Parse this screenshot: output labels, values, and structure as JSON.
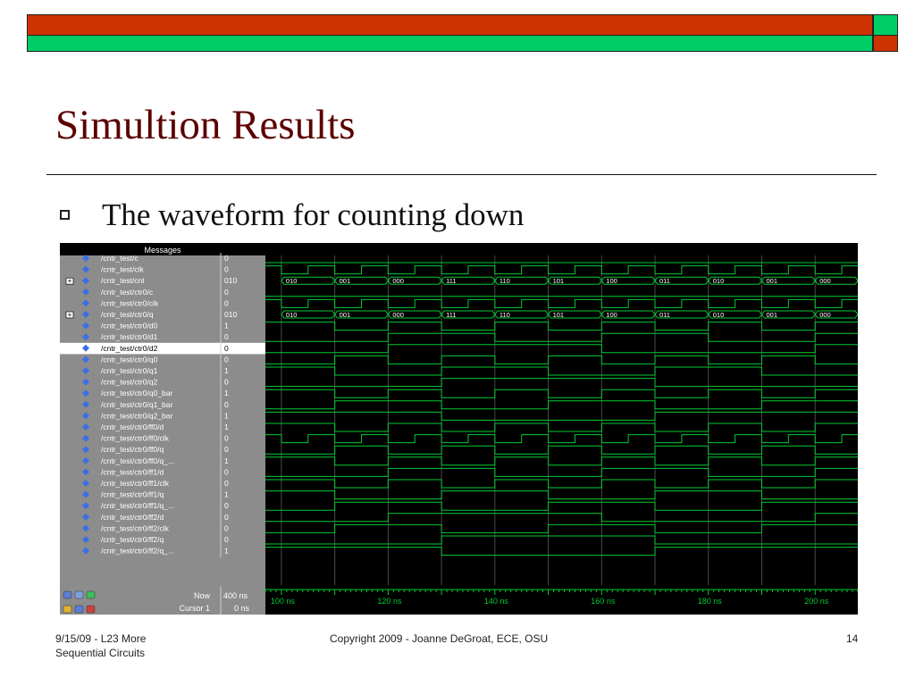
{
  "slide": {
    "title": "Simultion Results",
    "bullet": "The waveform for counting down"
  },
  "colors": {
    "title": "#5c0000",
    "bar_red": "#cc3300",
    "bar_green": "#00cc66",
    "wave_bg": "#000000",
    "wave_trace": "#00cc33",
    "wave_grid": "#e0e0e0",
    "panel_bg": "#8c8c8c",
    "signal_icon": "#3a6ee8"
  },
  "simulator": {
    "header_label": "Messages",
    "signals": [
      {
        "name": "/cntr_test/c",
        "value": "0",
        "expand": false
      },
      {
        "name": "/cntr_test/clk",
        "value": "0",
        "expand": false
      },
      {
        "name": "/cntr_test/cnt",
        "value": "010",
        "expand": true
      },
      {
        "name": "/cntr_test/ctr0/c",
        "value": "0",
        "expand": false
      },
      {
        "name": "/cntr_test/ctr0/clk",
        "value": "0",
        "expand": false
      },
      {
        "name": "/cntr_test/ctr0/q",
        "value": "010",
        "expand": true
      },
      {
        "name": "/cntr_test/ctr0/d0",
        "value": "1",
        "expand": false
      },
      {
        "name": "/cntr_test/ctr0/d1",
        "value": "0",
        "expand": false
      },
      {
        "name": "/cntr_test/ctr0/d2",
        "value": "0",
        "expand": false,
        "selected": true
      },
      {
        "name": "/cntr_test/ctr0/q0",
        "value": "0",
        "expand": false
      },
      {
        "name": "/cntr_test/ctr0/q1",
        "value": "1",
        "expand": false
      },
      {
        "name": "/cntr_test/ctr0/q2",
        "value": "0",
        "expand": false
      },
      {
        "name": "/cntr_test/ctr0/q0_bar",
        "value": "1",
        "expand": false
      },
      {
        "name": "/cntr_test/ctr0/q1_bar",
        "value": "0",
        "expand": false
      },
      {
        "name": "/cntr_test/ctr0/q2_bar",
        "value": "1",
        "expand": false
      },
      {
        "name": "/cntr_test/ctr0/ff0/d",
        "value": "1",
        "expand": false
      },
      {
        "name": "/cntr_test/ctr0/ff0/clk",
        "value": "0",
        "expand": false
      },
      {
        "name": "/cntr_test/ctr0/ff0/q",
        "value": "0",
        "expand": false
      },
      {
        "name": "/cntr_test/ctr0/ff0/q_...",
        "value": "1",
        "expand": false
      },
      {
        "name": "/cntr_test/ctr0/ff1/d",
        "value": "0",
        "expand": false
      },
      {
        "name": "/cntr_test/ctr0/ff1/clk",
        "value": "0",
        "expand": false
      },
      {
        "name": "/cntr_test/ctr0/ff1/q",
        "value": "1",
        "expand": false
      },
      {
        "name": "/cntr_test/ctr0/ff1/q_...",
        "value": "0",
        "expand": false
      },
      {
        "name": "/cntr_test/ctr0/ff2/d",
        "value": "0",
        "expand": false
      },
      {
        "name": "/cntr_test/ctr0/ff2/clk",
        "value": "0",
        "expand": false
      },
      {
        "name": "/cntr_test/ctr0/ff2/q",
        "value": "0",
        "expand": false
      },
      {
        "name": "/cntr_test/ctr0/ff2/q_...",
        "value": "1",
        "expand": false
      }
    ],
    "bus_values": [
      "010",
      "001",
      "000",
      "111",
      "110",
      "101",
      "100",
      "011",
      "010",
      "001",
      "000"
    ],
    "now_label": "Now",
    "now_value": "400 ns",
    "cursor_label": "Cursor 1",
    "cursor_value": "0 ns",
    "time_ticks": [
      "100 ns",
      "120 ns",
      "140 ns",
      "160 ns",
      "180 ns",
      "200 ns"
    ],
    "time_range_ns": [
      97,
      208
    ],
    "clock_period_ns": 10,
    "status_icons": [
      "zoom-icon",
      "compare-icon",
      "add-cursor-icon",
      "lock-icon",
      "pencil-icon",
      "delete-cursor-icon"
    ]
  },
  "footer": {
    "left": "9/15/09 - L23 More Sequential Circuits",
    "center": "Copyright 2009 - Joanne DeGroat, ECE, OSU",
    "page": "14"
  }
}
